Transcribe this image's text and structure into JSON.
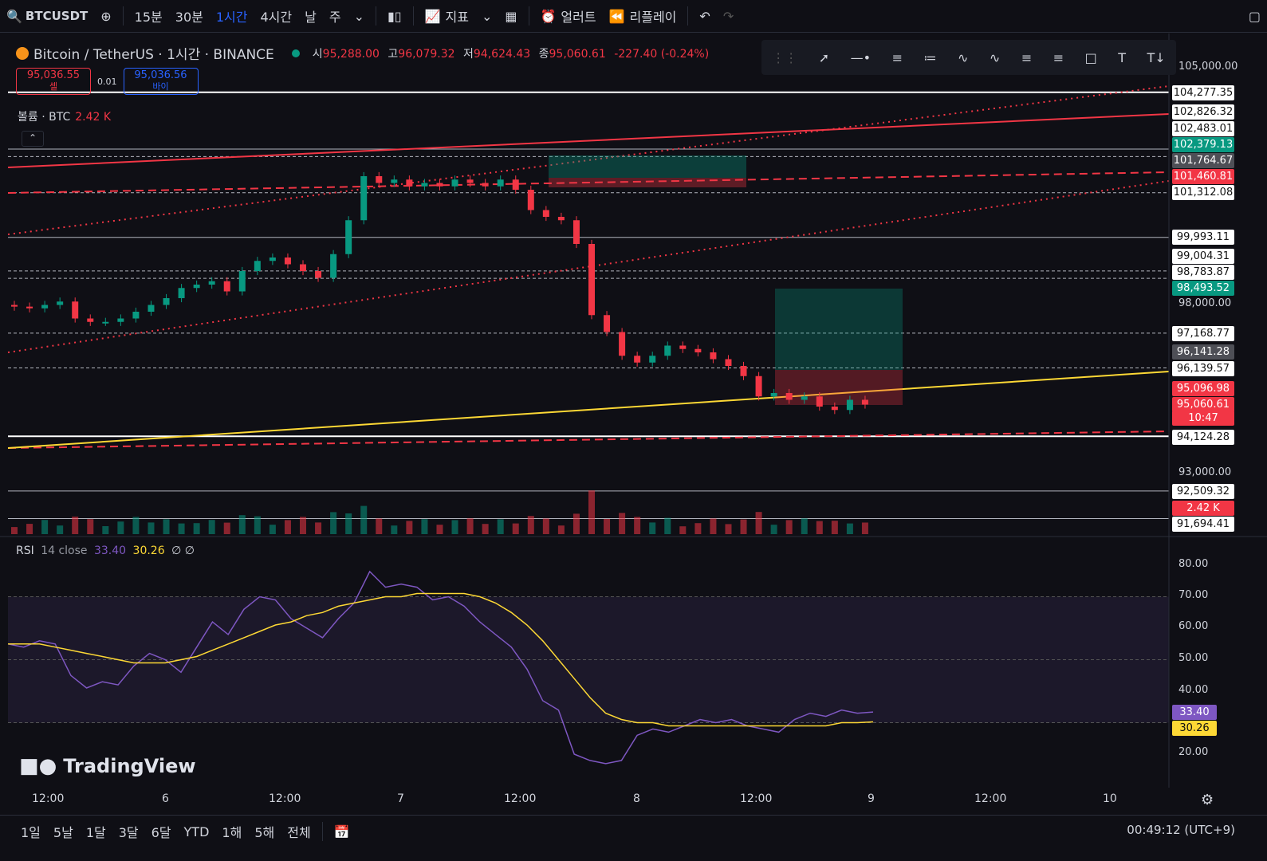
{
  "toolbar": {
    "symbol": "BTCUSDT",
    "intervals": [
      "15분",
      "30분",
      "1시간",
      "4시간",
      "날",
      "주"
    ],
    "active_interval": "1시간",
    "indicators_label": "지표",
    "alert_label": "얼러트",
    "replay_label": "리플레이"
  },
  "legend": {
    "title": "Bitcoin / TetherUS · 1시간 · BINANCE",
    "o_k": "시",
    "o": "95,288.00",
    "h_k": "고",
    "h": "96,079.32",
    "l_k": "저",
    "l": "94,624.43",
    "c_k": "종",
    "c": "95,060.61",
    "chg": "-227.40 (-0.24%)"
  },
  "bidask": {
    "sell_price": "95,036.55",
    "sell_label": "셀",
    "spread": "0.01",
    "buy_price": "95,036.56",
    "buy_label": "바이"
  },
  "volume": {
    "label": "볼륨 · BTC",
    "value": "2.42 K",
    "collapse_icon": "chevron-up-icon"
  },
  "price_axis": {
    "ticks": [
      "105,000.00",
      "98,000.00",
      "93,000.00"
    ],
    "labels": [
      {
        "text": "104,277.35",
        "bg": "#ffffff",
        "fg": "#111111"
      },
      {
        "text": "102,826.32",
        "bg": "#ffffff",
        "fg": "#111111"
      },
      {
        "text": "102,483.01",
        "bg": "#ffffff",
        "fg": "#111111"
      },
      {
        "text": "102,379.13",
        "bg": "#089981",
        "fg": "#ffffff"
      },
      {
        "text": "101,764.67",
        "bg": "#4e4f56",
        "fg": "#ffffff"
      },
      {
        "text": "101,460.81",
        "bg": "#f23645",
        "fg": "#ffffff"
      },
      {
        "text": "101,312.08",
        "bg": "#ffffff",
        "fg": "#111111"
      },
      {
        "text": "99,993.11",
        "bg": "#ffffff",
        "fg": "#111111"
      },
      {
        "text": "99,004.31",
        "bg": "#ffffff",
        "fg": "#111111"
      },
      {
        "text": "98,783.87",
        "bg": "#ffffff",
        "fg": "#111111"
      },
      {
        "text": "98,493.52",
        "bg": "#089981",
        "fg": "#ffffff"
      },
      {
        "text": "97,168.77",
        "bg": "#ffffff",
        "fg": "#111111"
      },
      {
        "text": "96,141.28",
        "bg": "#4e4f56",
        "fg": "#ffffff"
      },
      {
        "text": "96,139.57",
        "bg": "#ffffff",
        "fg": "#111111"
      },
      {
        "text": "95,096.98",
        "bg": "#f23645",
        "fg": "#ffffff"
      },
      {
        "text": "95,060.61",
        "bg": "#f23645",
        "fg": "#ffffff"
      },
      {
        "text": "94,124.28",
        "bg": "#ffffff",
        "fg": "#111111"
      },
      {
        "text": "92,509.32",
        "bg": "#ffffff",
        "fg": "#111111"
      },
      {
        "text": "2.42 K",
        "bg": "#f23645",
        "fg": "#ffffff"
      },
      {
        "text": "91,694.41",
        "bg": "#ffffff",
        "fg": "#111111"
      }
    ],
    "countdown": "10:47"
  },
  "rsi": {
    "label": "RSI",
    "params": "14 close",
    "rsi_value": "33.40",
    "ma_value": "30.26",
    "extra": "∅ ∅",
    "ticks": [
      "80.00",
      "70.00",
      "60.00",
      "50.00",
      "40.00",
      "20.00"
    ],
    "rsi_label": "33.40",
    "ma_label": "30.26"
  },
  "x_axis": [
    "12:00",
    "6",
    "12:00",
    "7",
    "12:00",
    "8",
    "12:00",
    "9",
    "12:00",
    "10"
  ],
  "brand": "TradingView",
  "bottom": {
    "ranges": [
      "1일",
      "5날",
      "1달",
      "3달",
      "6달",
      "YTD",
      "1해",
      "5해",
      "전체"
    ],
    "clock": "00:49:12 (UTC+9)"
  },
  "colors": {
    "up": "#089981",
    "down": "#f23645",
    "rsi": "#7e57c2",
    "rsi_ma": "#fdd835"
  },
  "chart_data": {
    "type": "candlestick",
    "interval": "1h",
    "close_series_approx": [
      97.95,
      97.9,
      98.0,
      98.1,
      97.6,
      97.5,
      97.5,
      97.6,
      97.8,
      98.0,
      98.2,
      98.5,
      98.6,
      98.7,
      98.4,
      99.0,
      99.3,
      99.4,
      99.2,
      99.0,
      98.8,
      99.5,
      100.5,
      101.8,
      101.6,
      101.7,
      101.5,
      101.6,
      101.5,
      101.7,
      101.6,
      101.5,
      101.7,
      101.4,
      100.8,
      100.6,
      100.5,
      99.8,
      97.7,
      97.2,
      96.5,
      96.3,
      96.5,
      96.8,
      96.7,
      96.6,
      96.4,
      96.2,
      95.9,
      95.3,
      95.4,
      95.2,
      95.3,
      95.0,
      94.9,
      95.2,
      95.06
    ],
    "rsi_series_approx": [
      55,
      54,
      56,
      55,
      45,
      41,
      43,
      42,
      48,
      52,
      50,
      46,
      54,
      62,
      58,
      66,
      70,
      69,
      63,
      60,
      57,
      63,
      68,
      78,
      73,
      74,
      73,
      69,
      70,
      67,
      62,
      58,
      54,
      47,
      37,
      34,
      20,
      18,
      17,
      18,
      26,
      28,
      27,
      29,
      31,
      30,
      31,
      29,
      28,
      27,
      31,
      33,
      32,
      34,
      33,
      33.4
    ],
    "rsi_ma_series_approx": [
      55,
      55,
      55,
      54,
      53,
      52,
      51,
      50,
      49,
      49,
      49,
      50,
      51,
      53,
      55,
      57,
      59,
      61,
      62,
      64,
      65,
      67,
      68,
      69,
      70,
      70,
      71,
      71,
      71,
      71,
      70,
      68,
      65,
      61,
      56,
      50,
      44,
      38,
      33,
      31,
      30,
      30,
      29,
      29,
      29,
      29,
      29,
      29,
      29,
      29,
      29,
      29,
      29,
      30,
      30,
      30.26
    ]
  }
}
